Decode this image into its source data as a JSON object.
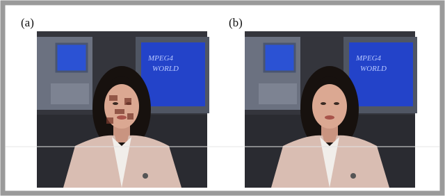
{
  "panels": [
    {
      "label": "(a)",
      "screen_text": [
        "MPEG4",
        "WORLD"
      ]
    },
    {
      "label": "(b)",
      "screen_text": [
        "MPEG4",
        "WORLD"
      ]
    }
  ]
}
